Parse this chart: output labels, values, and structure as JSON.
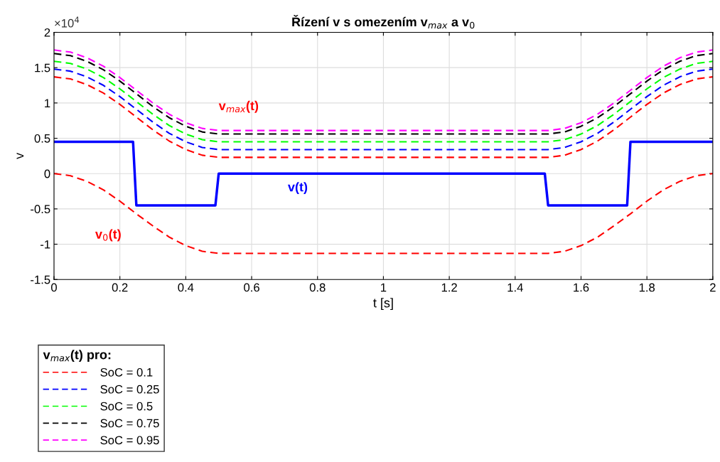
{
  "chart_data": {
    "type": "line",
    "title": "Řízení v s omezením v$_{max}$ a v$_{0}$",
    "xlabel": "t [s]",
    "ylabel": "v",
    "x": [
      0,
      0.05,
      0.1,
      0.15,
      0.2,
      0.25,
      0.3,
      0.35,
      0.4,
      0.45,
      0.5,
      1.5,
      1.55,
      1.6,
      1.65,
      1.7,
      1.75,
      1.8,
      1.85,
      1.9,
      1.95,
      2.0
    ],
    "series": [
      {
        "name": "SoC = 0.1",
        "color": "#ff0000",
        "line_style": "dashed",
        "values": [
          1.37,
          1.34,
          1.26,
          1.14,
          0.98,
          0.8,
          0.62,
          0.46,
          0.34,
          0.26,
          0.23,
          0.23,
          0.26,
          0.34,
          0.46,
          0.62,
          0.8,
          0.98,
          1.14,
          1.26,
          1.34,
          1.37
        ]
      },
      {
        "name": "SoC = 0.25",
        "color": "#0000ff",
        "line_style": "dashed",
        "values": [
          1.48,
          1.45,
          1.37,
          1.25,
          1.09,
          0.91,
          0.73,
          0.57,
          0.45,
          0.37,
          0.34,
          0.34,
          0.37,
          0.45,
          0.57,
          0.73,
          0.91,
          1.09,
          1.25,
          1.37,
          1.45,
          1.48
        ]
      },
      {
        "name": "SoC = 0.5",
        "color": "#00ff00",
        "line_style": "dashed",
        "values": [
          1.59,
          1.56,
          1.48,
          1.36,
          1.2,
          1.02,
          0.84,
          0.68,
          0.56,
          0.48,
          0.45,
          0.45,
          0.48,
          0.56,
          0.68,
          0.84,
          1.02,
          1.2,
          1.36,
          1.48,
          1.56,
          1.59
        ]
      },
      {
        "name": "SoC = 0.75",
        "color": "#000000",
        "line_style": "dashed",
        "values": [
          1.7,
          1.67,
          1.59,
          1.47,
          1.31,
          1.13,
          0.95,
          0.79,
          0.67,
          0.59,
          0.56,
          0.56,
          0.59,
          0.67,
          0.79,
          0.95,
          1.13,
          1.31,
          1.47,
          1.59,
          1.67,
          1.7
        ]
      },
      {
        "name": "SoC = 0.95",
        "color": "#ff00ff",
        "line_style": "dashed",
        "values": [
          1.75,
          1.72,
          1.64,
          1.52,
          1.36,
          1.18,
          1.0,
          0.84,
          0.72,
          0.64,
          0.61,
          0.61,
          0.64,
          0.72,
          0.84,
          1.0,
          1.18,
          1.36,
          1.52,
          1.64,
          1.72,
          1.75
        ]
      },
      {
        "name": "v$_{0}$(t)",
        "color": "#ff0000",
        "line_style": "dashed",
        "x": [
          0,
          0.05,
          0.1,
          0.15,
          0.2,
          0.25,
          0.3,
          0.35,
          0.4,
          0.45,
          0.5,
          1.5,
          1.55,
          1.6,
          1.65,
          1.7,
          1.75,
          1.8,
          1.85,
          1.9,
          1.95,
          2.0
        ],
        "values": [
          0,
          -0.03,
          -0.11,
          -0.23,
          -0.39,
          -0.57,
          -0.74,
          -0.9,
          -1.02,
          -1.1,
          -1.13,
          -1.13,
          -1.1,
          -1.02,
          -0.9,
          -0.74,
          -0.57,
          -0.39,
          -0.23,
          -0.11,
          -0.03,
          0
        ]
      },
      {
        "name": "v(t)",
        "color": "#0000ff",
        "line_style": "solid",
        "x": [
          0,
          0.24,
          0.25,
          0.49,
          0.5,
          1.49,
          1.5,
          1.74,
          1.75,
          2
        ],
        "values": [
          0.45,
          0.45,
          -0.45,
          -0.45,
          0,
          0,
          -0.45,
          -0.45,
          0.45,
          0.45
        ]
      }
    ],
    "xlim": [
      0,
      2
    ],
    "xticks": [
      0,
      0.2,
      0.4,
      0.6,
      0.8,
      1,
      1.2,
      1.4,
      1.6,
      1.8,
      2
    ],
    "ylim": [
      -1.5,
      2
    ],
    "yticks": [
      -1.5,
      -1,
      -0.5,
      0,
      0.5,
      1,
      1.5,
      2
    ],
    "annotations": [
      "×10$^{4}$",
      "v$_{max}$(t)"
    ],
    "legend": "bottom left",
    "legend_title": "v$_{max}$(t) pro:",
    "grid": true
  }
}
